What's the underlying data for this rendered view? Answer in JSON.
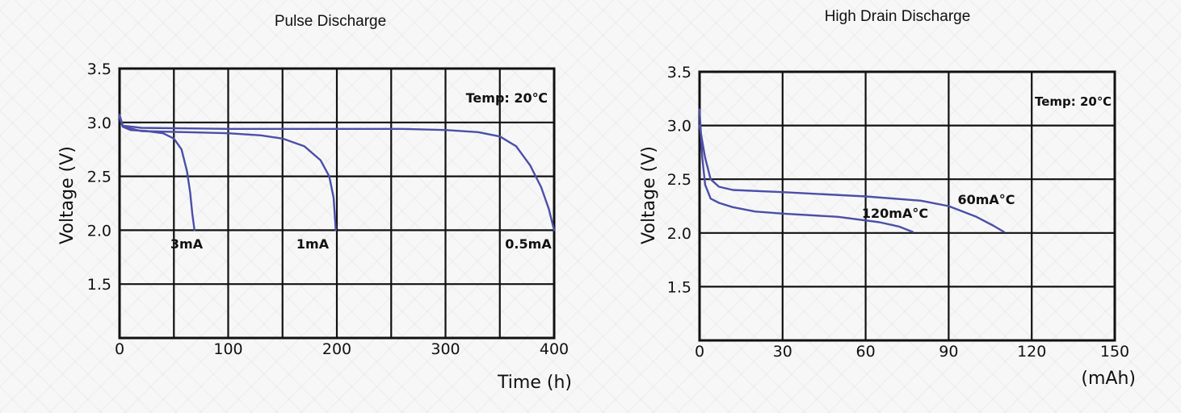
{
  "colors": {
    "curve": "#4b4fa8",
    "grid": "#111111"
  },
  "chart_data": [
    {
      "type": "line",
      "title": "Pulse Discharge",
      "xlabel": "Time (h)",
      "ylabel": "Voltage (V)",
      "xlim": [
        0,
        400
      ],
      "ylim": [
        1,
        3.5
      ],
      "x_ticks": [
        "0",
        "100",
        "200",
        "300",
        "400"
      ],
      "y_ticks": [
        "1.5",
        "2.0",
        "2.5",
        "3.0",
        "3.5"
      ],
      "x_gridlines": [
        0,
        50,
        100,
        150,
        200,
        250,
        300,
        350,
        400
      ],
      "y_gridlines": [
        1,
        1.5,
        2,
        2.5,
        3,
        3.5
      ],
      "grid": true,
      "annotation": "Temp: 20℃",
      "series": [
        {
          "name": "3mA",
          "points": [
            [
              0,
              3.05
            ],
            [
              3,
              2.96
            ],
            [
              10,
              2.93
            ],
            [
              25,
              2.92
            ],
            [
              40,
              2.9
            ],
            [
              50,
              2.85
            ],
            [
              57,
              2.75
            ],
            [
              62,
              2.55
            ],
            [
              65,
              2.35
            ],
            [
              67,
              2.15
            ],
            [
              69,
              2.0
            ]
          ]
        },
        {
          "name": "1mA",
          "points": [
            [
              0,
              3.05
            ],
            [
              3,
              2.96
            ],
            [
              20,
              2.92
            ],
            [
              60,
              2.91
            ],
            [
              100,
              2.9
            ],
            [
              130,
              2.88
            ],
            [
              150,
              2.85
            ],
            [
              170,
              2.78
            ],
            [
              185,
              2.65
            ],
            [
              193,
              2.5
            ],
            [
              197,
              2.3
            ],
            [
              199,
              2.0
            ]
          ]
        },
        {
          "name": "0.5mA",
          "points": [
            [
              0,
              3.07
            ],
            [
              3,
              2.97
            ],
            [
              20,
              2.95
            ],
            [
              100,
              2.94
            ],
            [
              200,
              2.94
            ],
            [
              260,
              2.94
            ],
            [
              300,
              2.93
            ],
            [
              330,
              2.91
            ],
            [
              350,
              2.87
            ],
            [
              365,
              2.78
            ],
            [
              378,
              2.6
            ],
            [
              388,
              2.4
            ],
            [
              395,
              2.2
            ],
            [
              400,
              2.0
            ]
          ]
        }
      ]
    },
    {
      "type": "line",
      "title": "High Drain Discharge",
      "xlabel": "(mAh)",
      "ylabel": "Voltage (V)",
      "xlim": [
        0,
        150
      ],
      "ylim": [
        1,
        3.5
      ],
      "x_ticks": [
        "0",
        "30",
        "60",
        "90",
        "120",
        "150"
      ],
      "y_ticks": [
        "1.5",
        "2.0",
        "2.5",
        "3.0",
        "3.5"
      ],
      "x_gridlines": [
        0,
        30,
        60,
        90,
        120,
        150
      ],
      "y_gridlines": [
        1,
        1.5,
        2,
        2.5,
        3,
        3.5
      ],
      "grid": true,
      "annotation": "Temp: 20℃",
      "series": [
        {
          "name": "120mA°C",
          "points": [
            [
              0,
              3.15
            ],
            [
              1,
              2.7
            ],
            [
              2,
              2.45
            ],
            [
              4,
              2.32
            ],
            [
              7,
              2.28
            ],
            [
              12,
              2.24
            ],
            [
              20,
              2.2
            ],
            [
              30,
              2.18
            ],
            [
              50,
              2.15
            ],
            [
              65,
              2.1
            ],
            [
              72,
              2.06
            ],
            [
              77,
              2.01
            ]
          ]
        },
        {
          "name": "60mA°C",
          "points": [
            [
              0,
              3.0
            ],
            [
              2,
              2.7
            ],
            [
              4,
              2.5
            ],
            [
              7,
              2.43
            ],
            [
              12,
              2.4
            ],
            [
              30,
              2.38
            ],
            [
              60,
              2.34
            ],
            [
              80,
              2.3
            ],
            [
              90,
              2.25
            ],
            [
              100,
              2.15
            ],
            [
              106,
              2.07
            ],
            [
              110,
              2.01
            ]
          ]
        }
      ]
    }
  ]
}
